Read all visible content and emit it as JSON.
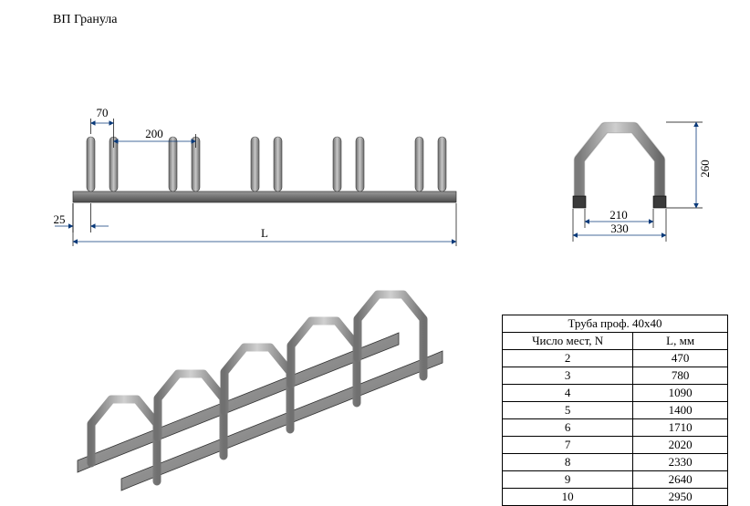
{
  "title": "ВП Гранула",
  "dimensions": {
    "front_dim1": "70",
    "front_dim2": "200",
    "front_margin": "25",
    "front_length": "L",
    "side_height": "260",
    "side_inner": "210",
    "side_outer": "330"
  },
  "table": {
    "header": "Труба проф. 40х40",
    "col1": "Число мест, N",
    "col2": "L, мм",
    "rows": [
      {
        "n": "2",
        "l": "470"
      },
      {
        "n": "3",
        "l": "780"
      },
      {
        "n": "4",
        "l": "1090"
      },
      {
        "n": "5",
        "l": "1400"
      },
      {
        "n": "6",
        "l": "1710"
      },
      {
        "n": "7",
        "l": "2020"
      },
      {
        "n": "8",
        "l": "2330"
      },
      {
        "n": "9",
        "l": "2640"
      },
      {
        "n": "10",
        "l": "2950"
      }
    ]
  },
  "colors": {
    "steel_light": "#b0b0b0",
    "steel_dark": "#6a6a6a",
    "steel_mid": "#8a8a8a",
    "arrow": "#0a3a7a",
    "dim_line": "#000000"
  }
}
